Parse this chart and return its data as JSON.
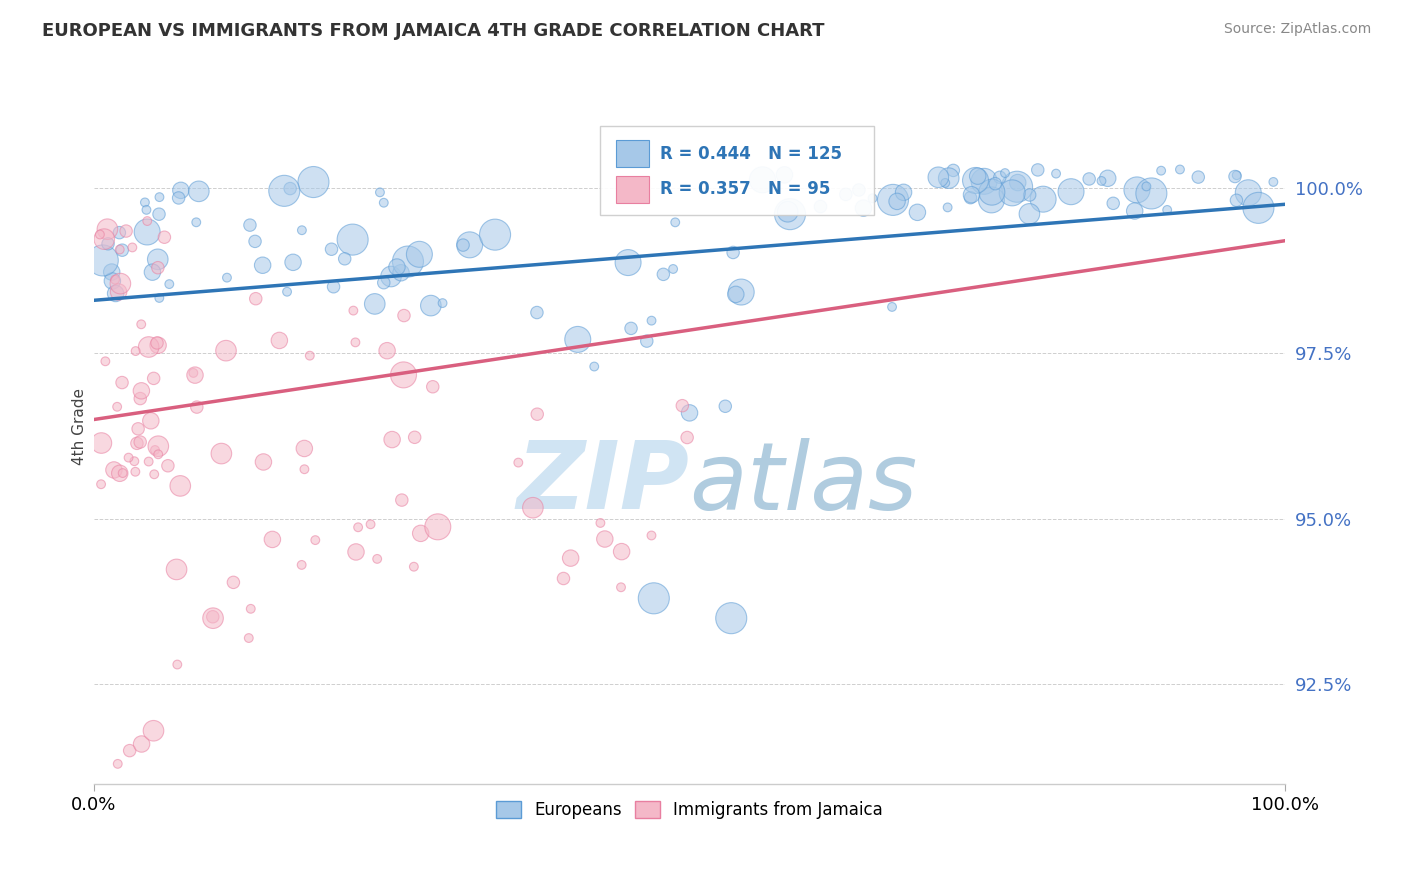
{
  "title": "EUROPEAN VS IMMIGRANTS FROM JAMAICA 4TH GRADE CORRELATION CHART",
  "source": "Source: ZipAtlas.com",
  "ylabel": "4th Grade",
  "legend_european": "Europeans",
  "legend_jamaica": "Immigrants from Jamaica",
  "r_european": 0.444,
  "n_european": 125,
  "r_jamaica": 0.357,
  "n_jamaica": 95,
  "blue_color": "#a6c8e8",
  "pink_color": "#f4b8c8",
  "blue_edge_color": "#5b9bd5",
  "pink_edge_color": "#e87fa0",
  "blue_line_color": "#2e75b6",
  "pink_line_color": "#d95f7f",
  "tick_color": "#4472c4",
  "watermark_color": "#d0e4f3",
  "xlim": [
    0.0,
    100.0
  ],
  "ylim": [
    91.0,
    101.8
  ],
  "ytick_vals": [
    92.5,
    95.0,
    97.5,
    100.0
  ],
  "ytick_labels": [
    "92.5%",
    "95.0%",
    "97.5%",
    "100.0%"
  ],
  "blue_line_x0": 0,
  "blue_line_x1": 100,
  "blue_line_y0": 98.3,
  "blue_line_y1": 99.75,
  "pink_line_x0": 0,
  "pink_line_x1": 100,
  "pink_line_y0": 96.5,
  "pink_line_y1": 99.2
}
